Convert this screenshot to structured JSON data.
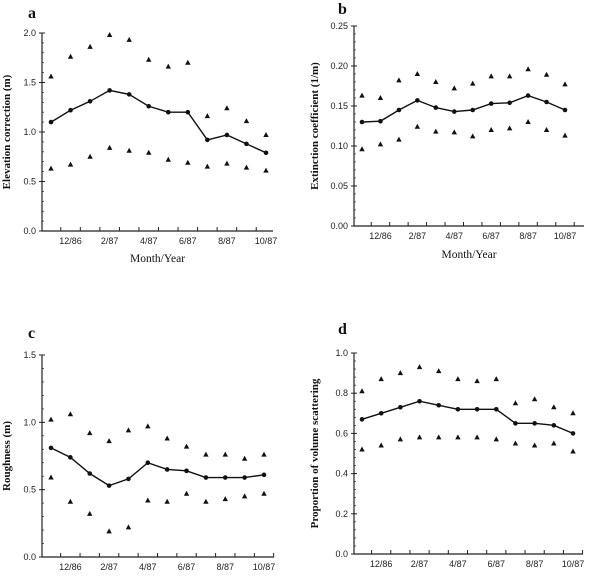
{
  "chart_data": [
    {
      "type": "line",
      "panel_letter": "a",
      "xlabel": "Month/Year",
      "ylabel": "Elevation correction (m)",
      "x": [
        "11/86",
        "12/86",
        "1/87",
        "2/87",
        "3/87",
        "4/87",
        "5/87",
        "6/87",
        "7/87",
        "8/87",
        "9/87",
        "10/87"
      ],
      "x_tick_labels": [
        "12/86",
        "2/87",
        "4/87",
        "6/87",
        "8/87",
        "10/87"
      ],
      "ylim": [
        0,
        2.0
      ],
      "y_ticks": [
        "0.0",
        "0.5",
        "1.0",
        "1.5",
        "2.0"
      ],
      "grid": false,
      "series": [
        {
          "role": "mean",
          "marker": "circle-line",
          "values": [
            1.1,
            1.22,
            1.31,
            1.42,
            1.38,
            1.26,
            1.2,
            1.2,
            0.92,
            0.97,
            0.88,
            0.79
          ]
        },
        {
          "role": "upper",
          "marker": "triangle",
          "values": [
            1.56,
            1.76,
            1.86,
            1.98,
            1.93,
            1.73,
            1.66,
            1.7,
            1.16,
            1.24,
            1.11,
            0.97
          ]
        },
        {
          "role": "lower",
          "marker": "triangle",
          "values": [
            0.63,
            0.67,
            0.75,
            0.84,
            0.81,
            0.79,
            0.72,
            0.69,
            0.65,
            0.68,
            0.64,
            0.61
          ]
        }
      ]
    },
    {
      "type": "line",
      "panel_letter": "b",
      "xlabel": "Month/Year",
      "ylabel": "Extinction coefficient (1/m)",
      "x": [
        "11/86",
        "12/86",
        "1/87",
        "2/87",
        "3/87",
        "4/87",
        "5/87",
        "6/87",
        "7/87",
        "8/87",
        "9/87",
        "10/87"
      ],
      "x_tick_labels": [
        "12/86",
        "2/87",
        "4/87",
        "6/87",
        "8/87",
        "10/87"
      ],
      "ylim": [
        0,
        0.25
      ],
      "y_ticks": [
        "0.00",
        "0.05",
        "0.10",
        "0.15",
        "0.20",
        "0.25"
      ],
      "grid": false,
      "series": [
        {
          "role": "mean",
          "marker": "circle-line",
          "values": [
            0.13,
            0.131,
            0.145,
            0.157,
            0.148,
            0.143,
            0.145,
            0.153,
            0.154,
            0.163,
            0.155,
            0.145
          ]
        },
        {
          "role": "upper",
          "marker": "triangle",
          "values": [
            0.163,
            0.16,
            0.182,
            0.19,
            0.18,
            0.172,
            0.178,
            0.187,
            0.187,
            0.196,
            0.189,
            0.177
          ]
        },
        {
          "role": "lower",
          "marker": "triangle",
          "values": [
            0.096,
            0.102,
            0.108,
            0.124,
            0.118,
            0.117,
            0.112,
            0.12,
            0.122,
            0.13,
            0.12,
            0.113
          ]
        }
      ]
    },
    {
      "type": "line",
      "panel_letter": "c",
      "xlabel": "",
      "ylabel": "Roughness (m)",
      "x": [
        "11/86",
        "12/86",
        "1/87",
        "2/87",
        "3/87",
        "4/87",
        "5/87",
        "6/87",
        "7/87",
        "8/87",
        "9/87",
        "10/87"
      ],
      "x_tick_labels": [
        "12/86",
        "2/87",
        "4/87",
        "6/87",
        "8/87",
        "10/87"
      ],
      "ylim": [
        0,
        1.5
      ],
      "y_ticks": [
        "0.0",
        "0.5",
        "1.0",
        "1.5"
      ],
      "grid": false,
      "series": [
        {
          "role": "mean",
          "marker": "circle-line",
          "values": [
            0.81,
            0.74,
            0.62,
            0.53,
            0.58,
            0.7,
            0.65,
            0.64,
            0.59,
            0.59,
            0.59,
            0.61
          ]
        },
        {
          "role": "upper",
          "marker": "triangle",
          "values": [
            1.02,
            1.06,
            0.92,
            0.86,
            0.94,
            0.97,
            0.88,
            0.82,
            0.76,
            0.76,
            0.73,
            0.76
          ]
        },
        {
          "role": "lower",
          "marker": "triangle",
          "values": [
            0.59,
            0.41,
            0.32,
            0.19,
            0.22,
            0.42,
            0.41,
            0.47,
            0.41,
            0.43,
            0.45,
            0.47
          ]
        }
      ]
    },
    {
      "type": "line",
      "panel_letter": "d",
      "xlabel": "",
      "ylabel": "Proportion of volume scattering",
      "x": [
        "11/86",
        "12/86",
        "1/87",
        "2/87",
        "3/87",
        "4/87",
        "5/87",
        "6/87",
        "7/87",
        "8/87",
        "9/87",
        "10/87"
      ],
      "x_tick_labels": [
        "12/86",
        "2/87",
        "4/87",
        "6/87",
        "8/87",
        "10/87"
      ],
      "ylim": [
        0,
        1.0
      ],
      "y_ticks": [
        "0.0",
        "0.2",
        "0.4",
        "0.6",
        "0.8",
        "1.0"
      ],
      "grid": false,
      "series": [
        {
          "role": "mean",
          "marker": "circle-line",
          "values": [
            0.67,
            0.7,
            0.73,
            0.76,
            0.74,
            0.72,
            0.72,
            0.72,
            0.65,
            0.65,
            0.64,
            0.6
          ]
        },
        {
          "role": "upper",
          "marker": "triangle",
          "values": [
            0.81,
            0.87,
            0.9,
            0.93,
            0.91,
            0.87,
            0.86,
            0.87,
            0.75,
            0.77,
            0.73,
            0.7
          ]
        },
        {
          "role": "lower",
          "marker": "triangle",
          "values": [
            0.52,
            0.54,
            0.57,
            0.58,
            0.58,
            0.58,
            0.58,
            0.57,
            0.55,
            0.54,
            0.55,
            0.51
          ]
        }
      ]
    }
  ]
}
